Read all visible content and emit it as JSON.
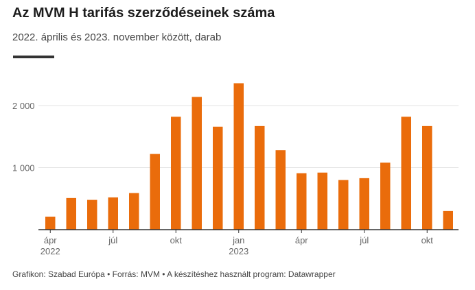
{
  "title": "Az MVM H tarifás szerződéseinek száma",
  "subtitle": "2022. április és 2023. november között, darab",
  "footer": "Grafikon: Szabad Európa • Forrás: MVM • A készítéshez használt program: Datawrapper",
  "colors": {
    "bar": "#ea6c0b",
    "grid": "#e3e3e3",
    "axis": "#333333"
  },
  "chart_data": {
    "type": "bar",
    "categories": [
      "2022-04",
      "2022-05",
      "2022-06",
      "2022-07",
      "2022-08",
      "2022-09",
      "2022-10",
      "2022-11",
      "2022-12",
      "2023-01",
      "2023-02",
      "2023-03",
      "2023-04",
      "2023-05",
      "2023-06",
      "2023-07",
      "2023-08",
      "2023-09",
      "2023-10",
      "2023-11"
    ],
    "values": [
      210,
      510,
      480,
      520,
      590,
      1220,
      1820,
      2140,
      1660,
      2360,
      1670,
      1280,
      910,
      920,
      800,
      830,
      1080,
      1820,
      1670,
      300
    ],
    "ylim": [
      0,
      2500
    ],
    "y_ticks": [
      {
        "value": 1000,
        "label": "1 000"
      },
      {
        "value": 2000,
        "label": "2 000"
      }
    ],
    "x_ticks": [
      {
        "index": 0,
        "label": "ápr",
        "year": "2022"
      },
      {
        "index": 3,
        "label": "júl",
        "year": ""
      },
      {
        "index": 6,
        "label": "okt",
        "year": ""
      },
      {
        "index": 9,
        "label": "jan",
        "year": "2023"
      },
      {
        "index": 12,
        "label": "ápr",
        "year": ""
      },
      {
        "index": 15,
        "label": "júl",
        "year": ""
      },
      {
        "index": 18,
        "label": "okt",
        "year": ""
      }
    ],
    "grid": true,
    "legend": "none"
  }
}
